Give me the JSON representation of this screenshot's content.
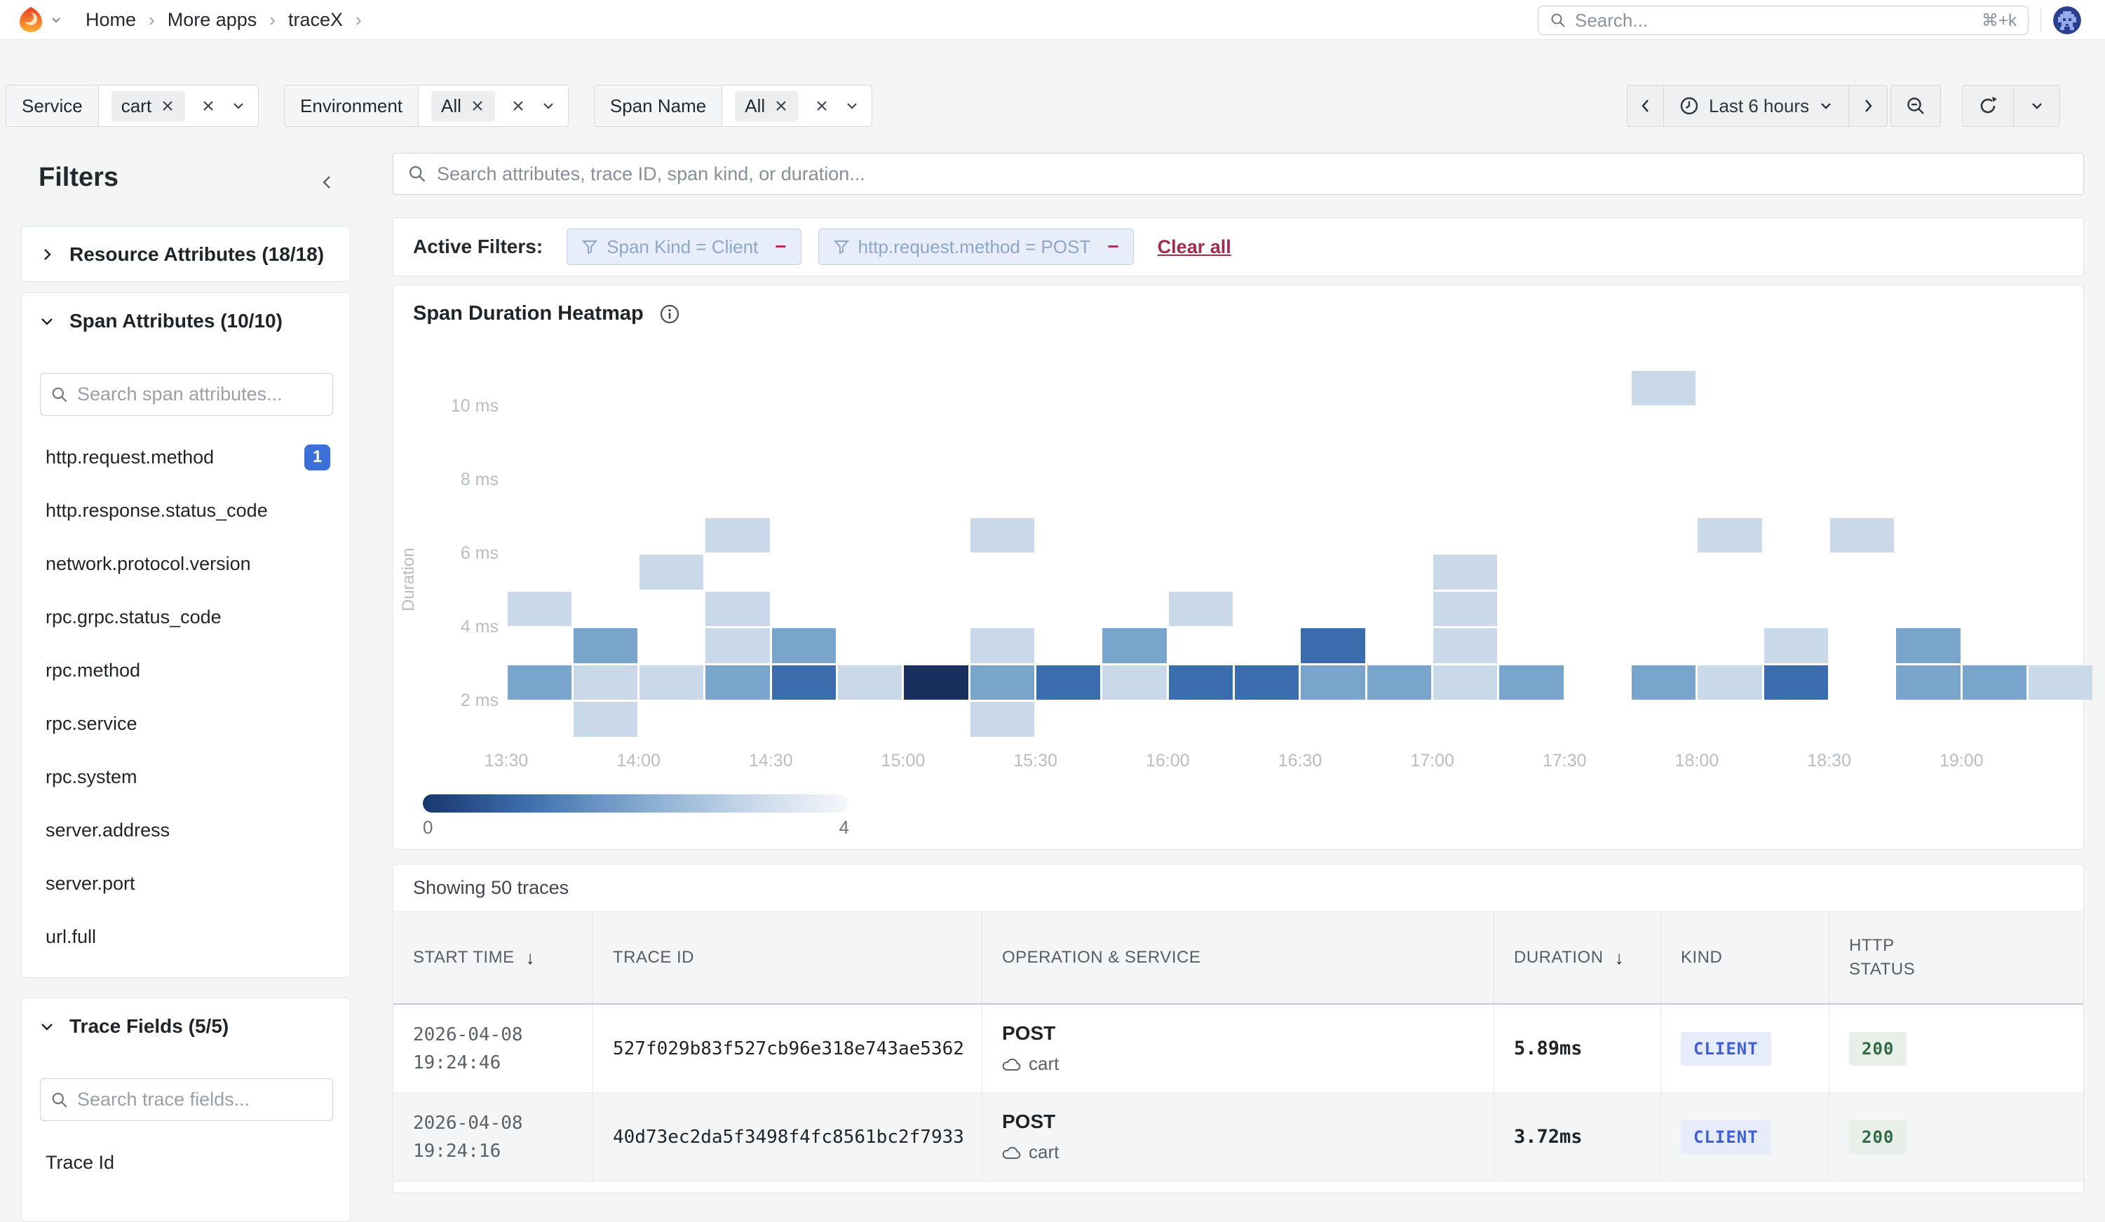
{
  "topbar": {
    "breadcrumb": [
      "Home",
      "More apps",
      "traceX"
    ],
    "search_placeholder": "Search...",
    "search_shortcut": "⌘+k"
  },
  "filterbar": {
    "groups": [
      {
        "label": "Service",
        "value": "cart"
      },
      {
        "label": "Environment",
        "value": "All"
      },
      {
        "label": "Span Name",
        "value": "All"
      }
    ],
    "time_range_label": "Last 6 hours"
  },
  "sidebar": {
    "title": "Filters",
    "resource_panel": {
      "title": "Resource Attributes (18/18)"
    },
    "span_panel": {
      "title": "Span Attributes (10/10)",
      "search_placeholder": "Search span attributes...",
      "items": [
        {
          "label": "http.request.method",
          "badge": "1"
        },
        {
          "label": "http.response.status_code"
        },
        {
          "label": "network.protocol.version"
        },
        {
          "label": "rpc.grpc.status_code"
        },
        {
          "label": "rpc.method"
        },
        {
          "label": "rpc.service"
        },
        {
          "label": "rpc.system"
        },
        {
          "label": "server.address"
        },
        {
          "label": "server.port"
        },
        {
          "label": "url.full"
        }
      ]
    },
    "trace_panel": {
      "title": "Trace Fields (5/5)",
      "search_placeholder": "Search trace fields...",
      "items": [
        {
          "label": "Trace Id"
        }
      ]
    }
  },
  "main": {
    "search_placeholder": "Search attributes, trace ID, span kind, or duration...",
    "active_filters": {
      "label": "Active Filters:",
      "chips": [
        "Span Kind = Client",
        "http.request.method = POST"
      ],
      "clear_label": "Clear all"
    },
    "traces": {
      "summary": "Showing 50 traces",
      "columns": [
        {
          "label": "START TIME",
          "sorted": true
        },
        {
          "label": "TRACE ID"
        },
        {
          "label": "OPERATION & SERVICE"
        },
        {
          "label": "DURATION",
          "sorted": true
        },
        {
          "label": "KIND"
        },
        {
          "label": "HTTP STATUS",
          "wrap": true
        }
      ],
      "rows": [
        {
          "date": "2026-04-08",
          "time": "19:24:46",
          "trace_id": "527f029b83f527cb96e318e743ae5362",
          "operation": "POST",
          "service": "cart",
          "duration": "5.89ms",
          "kind": "CLIENT",
          "status": "200"
        },
        {
          "date": "2026-04-08",
          "time": "19:24:16",
          "trace_id": "40d73ec2da5f3498f4fc8561bc2f7933",
          "operation": "POST",
          "service": "cart",
          "duration": "3.72ms",
          "kind": "CLIENT",
          "status": "200"
        }
      ]
    }
  },
  "chart_data": {
    "type": "heatmap",
    "title": "Span Duration Heatmap",
    "ylabel": "Duration",
    "y_ticks": [
      {
        "label": "10 ms",
        "ms": 10
      },
      {
        "label": "8 ms",
        "ms": 8
      },
      {
        "label": "6 ms",
        "ms": 6
      },
      {
        "label": "4 ms",
        "ms": 4
      },
      {
        "label": "2 ms",
        "ms": 2
      }
    ],
    "x_ticks": [
      "13:30",
      "14:00",
      "14:30",
      "15:00",
      "15:30",
      "16:00",
      "16:30",
      "17:00",
      "17:30",
      "18:00",
      "18:30",
      "19:00"
    ],
    "x_buckets": [
      "13:30",
      "13:45",
      "14:00",
      "14:15",
      "14:30",
      "14:45",
      "15:00",
      "15:15",
      "15:30",
      "15:45",
      "16:00",
      "16:15",
      "16:30",
      "16:45",
      "17:00",
      "17:15",
      "17:30",
      "17:45",
      "18:00",
      "18:15",
      "18:30",
      "18:45",
      "19:00",
      "19:15"
    ],
    "bucket_minutes": 15,
    "duration_bucket_ms": 1,
    "colors": {
      "1": "#c9d9ea",
      "2": "#79a5cc",
      "3": "#3a6cae",
      "4": "#19305f"
    },
    "legend": {
      "min": "0",
      "max": "4"
    },
    "cells": [
      {
        "x": "13:45",
        "y_ms": 1,
        "count": 1
      },
      {
        "x": "15:15",
        "y_ms": 1,
        "count": 1
      },
      {
        "x": "13:30",
        "y_ms": 2,
        "count": 2
      },
      {
        "x": "13:45",
        "y_ms": 2,
        "count": 1
      },
      {
        "x": "14:00",
        "y_ms": 2,
        "count": 1
      },
      {
        "x": "14:15",
        "y_ms": 2,
        "count": 2
      },
      {
        "x": "14:30",
        "y_ms": 2,
        "count": 3
      },
      {
        "x": "14:45",
        "y_ms": 2,
        "count": 1
      },
      {
        "x": "15:00",
        "y_ms": 2,
        "count": 4
      },
      {
        "x": "15:15",
        "y_ms": 2,
        "count": 2
      },
      {
        "x": "15:30",
        "y_ms": 2,
        "count": 3
      },
      {
        "x": "15:45",
        "y_ms": 2,
        "count": 1
      },
      {
        "x": "16:00",
        "y_ms": 2,
        "count": 3
      },
      {
        "x": "16:15",
        "y_ms": 2,
        "count": 3
      },
      {
        "x": "16:30",
        "y_ms": 2,
        "count": 2
      },
      {
        "x": "16:45",
        "y_ms": 2,
        "count": 2
      },
      {
        "x": "17:00",
        "y_ms": 2,
        "count": 1
      },
      {
        "x": "17:15",
        "y_ms": 2,
        "count": 2
      },
      {
        "x": "17:45",
        "y_ms": 2,
        "count": 2
      },
      {
        "x": "18:00",
        "y_ms": 2,
        "count": 1
      },
      {
        "x": "18:15",
        "y_ms": 2,
        "count": 3
      },
      {
        "x": "18:45",
        "y_ms": 2,
        "count": 2
      },
      {
        "x": "19:00",
        "y_ms": 2,
        "count": 2
      },
      {
        "x": "19:15",
        "y_ms": 2,
        "count": 1
      },
      {
        "x": "13:45",
        "y_ms": 3,
        "count": 2
      },
      {
        "x": "14:15",
        "y_ms": 3,
        "count": 1
      },
      {
        "x": "14:30",
        "y_ms": 3,
        "count": 2
      },
      {
        "x": "15:15",
        "y_ms": 3,
        "count": 1
      },
      {
        "x": "15:45",
        "y_ms": 3,
        "count": 2
      },
      {
        "x": "16:30",
        "y_ms": 3,
        "count": 3
      },
      {
        "x": "17:00",
        "y_ms": 3,
        "count": 1
      },
      {
        "x": "18:15",
        "y_ms": 3,
        "count": 1
      },
      {
        "x": "18:45",
        "y_ms": 3,
        "count": 2
      },
      {
        "x": "13:30",
        "y_ms": 4,
        "count": 1
      },
      {
        "x": "14:15",
        "y_ms": 4,
        "count": 1
      },
      {
        "x": "16:00",
        "y_ms": 4,
        "count": 1
      },
      {
        "x": "17:00",
        "y_ms": 4,
        "count": 1
      },
      {
        "x": "14:00",
        "y_ms": 5,
        "count": 1
      },
      {
        "x": "17:00",
        "y_ms": 5,
        "count": 1
      },
      {
        "x": "14:15",
        "y_ms": 6,
        "count": 1
      },
      {
        "x": "15:15",
        "y_ms": 6,
        "count": 1
      },
      {
        "x": "18:00",
        "y_ms": 6,
        "count": 1
      },
      {
        "x": "18:30",
        "y_ms": 6,
        "count": 1
      },
      {
        "x": "17:45",
        "y_ms": 10,
        "count": 1
      }
    ]
  }
}
